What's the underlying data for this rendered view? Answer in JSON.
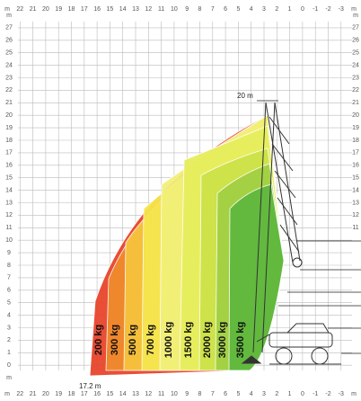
{
  "axes": {
    "x_labels": [
      "m",
      "22",
      "21",
      "20",
      "19",
      "18",
      "17",
      "16",
      "15",
      "14",
      "13",
      "12",
      "11",
      "10",
      "9",
      "8",
      "7",
      "6",
      "5",
      "4",
      "3",
      "2",
      "1",
      "0",
      "-1",
      "-2",
      "-3",
      "m"
    ],
    "y_labels": [
      "m",
      "27",
      "26",
      "25",
      "24",
      "23",
      "22",
      "21",
      "20",
      "19",
      "18",
      "17",
      "16",
      "15",
      "14",
      "13",
      "12",
      "11",
      "10",
      "9",
      "8",
      "7",
      "6",
      "5",
      "4",
      "3",
      "2",
      "1",
      "0",
      "m"
    ],
    "right_labels": [
      "m",
      "27",
      "26",
      "25",
      "24",
      "23",
      "22",
      "21",
      "20",
      "19",
      "18",
      "17",
      "16",
      "15",
      "14",
      "13",
      "12",
      "11"
    ]
  },
  "zones": [
    {
      "label": "200 kg",
      "color": "#e8452c"
    },
    {
      "label": "300 kg",
      "color": "#f08b2c"
    },
    {
      "label": "500 kg",
      "color": "#f6c23c"
    },
    {
      "label": "700 kg",
      "color": "#f6e64e"
    },
    {
      "label": "1000 kg",
      "color": "#f2f07a"
    },
    {
      "label": "1500 kg",
      "color": "#e7ee5c"
    },
    {
      "label": "2000 kg",
      "color": "#cde24a"
    },
    {
      "label": "3000 kg",
      "color": "#a2d144"
    },
    {
      "label": "3500 kg",
      "color": "#5fb83e"
    }
  ],
  "annotations": {
    "max_height": "20 m",
    "max_reach": "17.2 m"
  }
}
